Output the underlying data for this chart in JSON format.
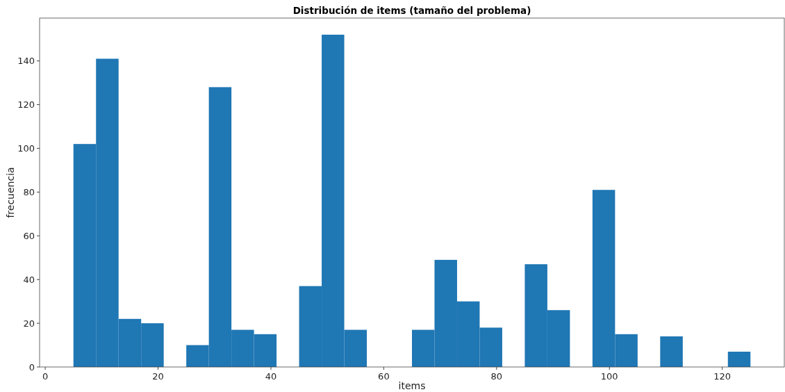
{
  "chart_data": {
    "type": "histogram",
    "title": "Distribución de items (tamaño del problema)",
    "xlabel": "items",
    "ylabel": "frecuencia",
    "color": "#1f77b4",
    "bins": [
      5,
      9,
      13,
      17,
      21,
      25,
      29,
      33,
      37,
      41,
      45,
      49,
      53,
      57,
      61,
      65,
      69,
      73,
      77,
      81,
      85,
      89,
      93,
      97,
      101,
      105,
      109,
      113,
      117,
      121,
      125
    ],
    "values": [
      102,
      141,
      22,
      20,
      0,
      10,
      128,
      17,
      15,
      0,
      37,
      152,
      17,
      0,
      0,
      17,
      49,
      30,
      18,
      0,
      47,
      26,
      0,
      81,
      15,
      0,
      14,
      0,
      0,
      7
    ],
    "xlim": [
      -1,
      131
    ],
    "ylim": [
      0,
      159.6
    ],
    "xticks": [
      0,
      20,
      40,
      60,
      80,
      100,
      120
    ],
    "yticks": [
      0,
      20,
      40,
      60,
      80,
      100,
      120,
      140
    ],
    "grid": false
  }
}
